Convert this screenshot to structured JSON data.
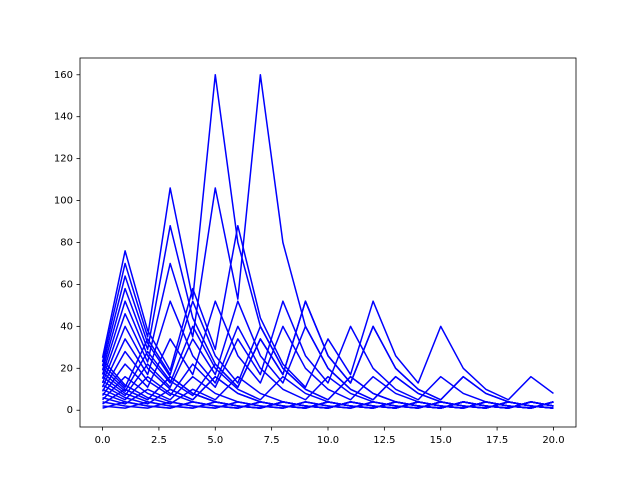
{
  "chart_data": {
    "type": "line",
    "color": "#0000ff",
    "x": [
      0,
      1,
      2,
      3,
      4,
      5,
      6,
      7,
      8,
      9,
      10,
      11,
      12,
      13,
      14,
      15,
      16,
      17,
      18,
      19,
      20
    ],
    "series": [
      {
        "values": [
          1,
          4,
          2,
          1,
          4,
          2,
          1,
          4,
          2,
          1,
          4,
          2,
          1,
          4,
          2,
          1,
          4,
          2,
          1,
          4,
          2
        ]
      },
      {
        "values": [
          2,
          1,
          4,
          2,
          1,
          4,
          2,
          1,
          4,
          2,
          1,
          4,
          2,
          1,
          4,
          2,
          1,
          4,
          2,
          1,
          4
        ]
      },
      {
        "values": [
          3,
          10,
          5,
          16,
          8,
          4,
          2,
          1,
          4,
          2,
          1,
          4,
          2,
          1,
          4,
          2,
          1,
          4,
          2,
          1,
          4
        ]
      },
      {
        "values": [
          4,
          2,
          1,
          4,
          2,
          1,
          4,
          2,
          1,
          4,
          2,
          1,
          4,
          2,
          1,
          4,
          2,
          1,
          4,
          2,
          1
        ]
      },
      {
        "values": [
          5,
          16,
          8,
          4,
          2,
          1,
          4,
          2,
          1,
          4,
          2,
          1,
          4,
          2,
          1,
          4,
          2,
          1,
          4,
          2,
          1
        ]
      },
      {
        "values": [
          6,
          3,
          10,
          5,
          16,
          8,
          4,
          2,
          1,
          4,
          2,
          1,
          4,
          2,
          1,
          4,
          2,
          1,
          4,
          2,
          1
        ]
      },
      {
        "values": [
          7,
          22,
          11,
          34,
          17,
          52,
          26,
          13,
          40,
          20,
          10,
          5,
          16,
          8,
          4,
          2,
          1,
          4,
          2,
          1,
          4
        ]
      },
      {
        "values": [
          8,
          4,
          2,
          1,
          4,
          2,
          1,
          4,
          2,
          1,
          4,
          2,
          1,
          4,
          2,
          1,
          4,
          2,
          1,
          4,
          2
        ]
      },
      {
        "values": [
          9,
          28,
          14,
          7,
          22,
          11,
          34,
          17,
          52,
          26,
          13,
          40,
          20,
          10,
          5,
          16,
          8,
          4,
          2,
          1,
          4
        ]
      },
      {
        "values": [
          10,
          5,
          16,
          8,
          4,
          2,
          1,
          4,
          2,
          1,
          4,
          2,
          1,
          4,
          2,
          1,
          4,
          2,
          1,
          4,
          2
        ]
      },
      {
        "values": [
          11,
          34,
          17,
          52,
          26,
          13,
          40,
          20,
          10,
          5,
          16,
          8,
          4,
          2,
          1,
          4,
          2,
          1,
          4,
          2,
          1
        ]
      },
      {
        "values": [
          12,
          6,
          3,
          10,
          5,
          16,
          8,
          4,
          2,
          1,
          4,
          2,
          1,
          4,
          2,
          1,
          4,
          2,
          1,
          4,
          2
        ]
      },
      {
        "values": [
          13,
          40,
          20,
          10,
          5,
          16,
          8,
          4,
          2,
          1,
          4,
          2,
          1,
          4,
          2,
          1,
          4,
          2,
          1,
          4,
          2
        ]
      },
      {
        "values": [
          14,
          7,
          22,
          11,
          34,
          17,
          52,
          26,
          13,
          40,
          20,
          10,
          5,
          16,
          8,
          4,
          2,
          1,
          4,
          2,
          1
        ]
      },
      {
        "values": [
          15,
          46,
          23,
          70,
          35,
          106,
          53,
          160,
          80,
          40,
          20,
          10,
          5,
          16,
          8,
          4,
          2,
          1,
          4,
          2,
          1
        ]
      },
      {
        "values": [
          16,
          8,
          4,
          2,
          1,
          4,
          2,
          1,
          4,
          2,
          1,
          4,
          2,
          1,
          4,
          2,
          1,
          4,
          2,
          1,
          4
        ]
      },
      {
        "values": [
          17,
          52,
          26,
          13,
          40,
          20,
          10,
          5,
          16,
          8,
          4,
          2,
          1,
          4,
          2,
          1,
          4,
          2,
          1,
          4,
          2
        ]
      },
      {
        "values": [
          18,
          9,
          28,
          14,
          7,
          22,
          11,
          34,
          17,
          52,
          26,
          13,
          40,
          20,
          10,
          5,
          16,
          8,
          4,
          2,
          1
        ]
      },
      {
        "values": [
          19,
          58,
          29,
          88,
          44,
          22,
          11,
          34,
          17,
          52,
          26,
          13,
          40,
          20,
          10,
          5,
          16,
          8,
          4,
          2,
          1
        ]
      },
      {
        "values": [
          20,
          10,
          5,
          16,
          8,
          4,
          2,
          1,
          4,
          2,
          1,
          4,
          2,
          1,
          4,
          2,
          1,
          4,
          2,
          1,
          4
        ]
      },
      {
        "values": [
          21,
          64,
          32,
          16,
          8,
          4,
          2,
          1,
          4,
          2,
          1,
          4,
          2,
          1,
          4,
          2,
          1,
          4,
          2,
          1,
          4
        ]
      },
      {
        "values": [
          22,
          11,
          34,
          17,
          52,
          26,
          13,
          40,
          20,
          10,
          5,
          16,
          8,
          4,
          2,
          1,
          4,
          2,
          1,
          4,
          2
        ]
      },
      {
        "values": [
          23,
          70,
          35,
          106,
          53,
          160,
          80,
          40,
          20,
          10,
          5,
          16,
          8,
          4,
          2,
          1,
          4,
          2,
          1,
          4,
          2
        ]
      },
      {
        "values": [
          24,
          12,
          6,
          3,
          10,
          5,
          16,
          8,
          4,
          2,
          1,
          4,
          2,
          1,
          4,
          2,
          1,
          4,
          2,
          1,
          4
        ]
      },
      {
        "values": [
          25,
          76,
          38,
          19,
          58,
          29,
          88,
          44,
          22,
          11,
          34,
          17,
          52,
          26,
          13,
          40,
          20,
          10,
          5,
          16,
          8
        ]
      }
    ],
    "xlim": [
      -1,
      21
    ],
    "xticks": [
      {
        "value": 0,
        "label": "0.0"
      },
      {
        "value": 2.5,
        "label": "2.5"
      },
      {
        "value": 5,
        "label": "5.0"
      },
      {
        "value": 7.5,
        "label": "7.5"
      },
      {
        "value": 10,
        "label": "10.0"
      },
      {
        "value": 12.5,
        "label": "12.5"
      },
      {
        "value": 15,
        "label": "15.0"
      },
      {
        "value": 17.5,
        "label": "17.5"
      },
      {
        "value": 20,
        "label": "20.0"
      }
    ],
    "ylim": [
      -8,
      168
    ],
    "yticks": [
      0,
      20,
      40,
      60,
      80,
      100,
      120,
      140,
      160
    ]
  }
}
